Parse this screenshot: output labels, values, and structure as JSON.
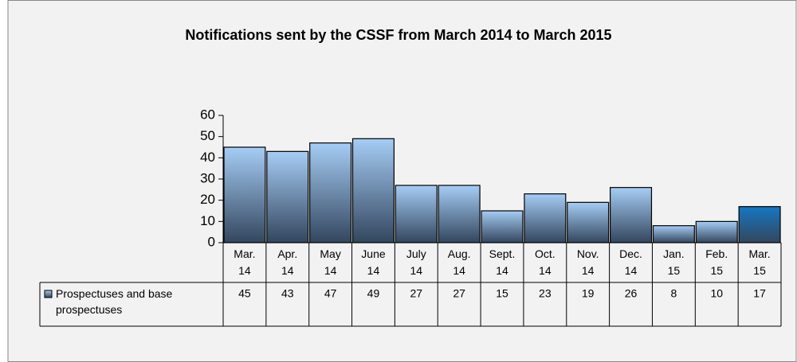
{
  "chart_data": {
    "type": "bar",
    "title": "Notifications sent by the CSSF from March 2014 to March 2015",
    "categories": [
      "Mar. 14",
      "Apr. 14",
      "May 14",
      "June 14",
      "July 14",
      "Aug. 14",
      "Sept. 14",
      "Oct. 14",
      "Nov. 14",
      "Dec. 14",
      "Jan. 15",
      "Feb. 15",
      "Mar. 15"
    ],
    "series": [
      {
        "name": "Prospectuses and base prospectuses",
        "color": "#a6cdf5",
        "values": [
          45,
          43,
          47,
          49,
          27,
          27,
          15,
          23,
          19,
          26,
          8,
          10,
          17
        ],
        "point_colors": [
          "#a6cdf5",
          "#a6cdf5",
          "#a6cdf5",
          "#a6cdf5",
          "#a6cdf5",
          "#a6cdf5",
          "#a6cdf5",
          "#a6cdf5",
          "#a6cdf5",
          "#a6cdf5",
          "#a6cdf5",
          "#a6cdf5",
          "#1677c0"
        ]
      }
    ],
    "ylim": [
      0,
      60
    ],
    "yticks": [
      0,
      10,
      20,
      30,
      40,
      50,
      60
    ],
    "grid": false,
    "data_table": true
  }
}
